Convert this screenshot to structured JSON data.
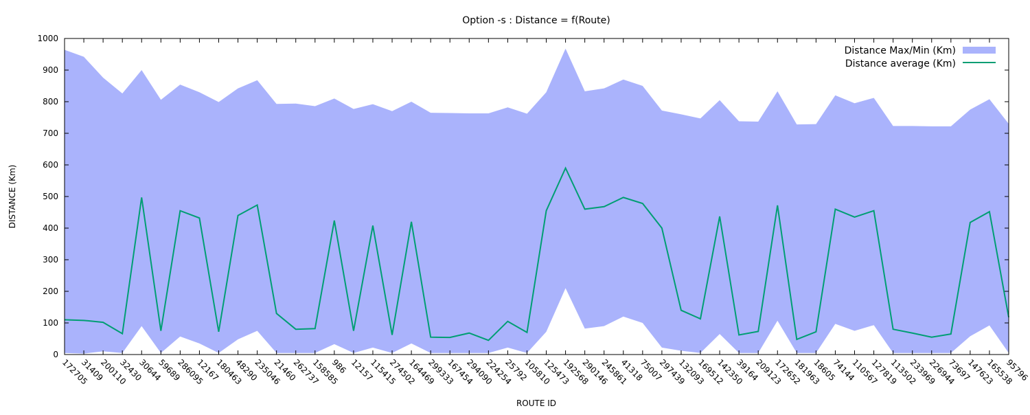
{
  "chart_data": {
    "type": "band-line",
    "title": "Option -s : Distance = f(Route)",
    "x_label": "ROUTE ID",
    "y_label": "DISTANCE (Km)",
    "categories": [
      "172705",
      "31409",
      "200110",
      "32430",
      "30644",
      "59689",
      "286095",
      "12167",
      "180463",
      "48290",
      "235046",
      "21460",
      "262737",
      "158585",
      "986",
      "12157",
      "115415",
      "274502",
      "164469",
      "299333",
      "167454",
      "294090",
      "224254",
      "25792",
      "105810",
      "125473",
      "192568",
      "290146",
      "245861",
      "41318",
      "75007",
      "297439",
      "132093",
      "169512",
      "142350",
      "39164",
      "209123",
      "172652",
      "181963",
      "18605",
      "74144",
      "110567",
      "127819",
      "113502",
      "233969",
      "226944",
      "73697",
      "147623",
      "165538",
      "95796"
    ],
    "series": [
      {
        "name": "Distance Max/Min (Km)",
        "color": "#aab3fc",
        "max": [
          964,
          942,
          876,
          826,
          900,
          806,
          854,
          830,
          799,
          842,
          868,
          793,
          794,
          786,
          810,
          777,
          792,
          770,
          800,
          765,
          764,
          763,
          763,
          782,
          762,
          830,
          968,
          833,
          842,
          870,
          850,
          772,
          760,
          747,
          805,
          738,
          737,
          833,
          728,
          729,
          820,
          795,
          812,
          723,
          723,
          722,
          722,
          775,
          808,
          730
        ],
        "min": [
          5,
          3,
          10,
          5,
          90,
          5,
          57,
          35,
          5,
          48,
          75,
          5,
          5,
          5,
          33,
          5,
          22,
          5,
          35,
          5,
          5,
          5,
          5,
          22,
          5,
          72,
          210,
          82,
          90,
          120,
          100,
          22,
          12,
          5,
          65,
          5,
          5,
          107,
          5,
          5,
          97,
          75,
          93,
          5,
          5,
          5,
          5,
          58,
          92,
          5
        ]
      },
      {
        "name": "Distance average (Km)",
        "color": "#009e73",
        "values": [
          110,
          108,
          102,
          66,
          497,
          75,
          455,
          432,
          72,
          440,
          473,
          130,
          80,
          82,
          424,
          75,
          408,
          62,
          420,
          55,
          54,
          68,
          45,
          105,
          70,
          455,
          590,
          460,
          468,
          497,
          478,
          400,
          140,
          113,
          437,
          62,
          73,
          472,
          48,
          72,
          460,
          435,
          455,
          80,
          68,
          55,
          65,
          418,
          452,
          118
        ]
      }
    ],
    "ylim": [
      0,
      1000
    ],
    "yticks": [
      0,
      100,
      200,
      300,
      400,
      500,
      600,
      700,
      800,
      900,
      1000
    ],
    "legend": "top right"
  }
}
